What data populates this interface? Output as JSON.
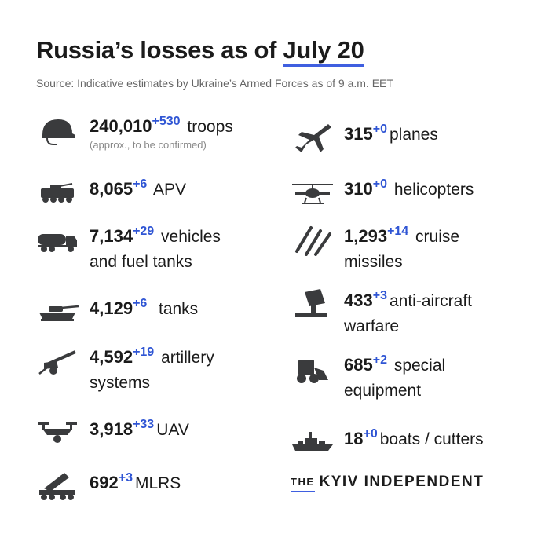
{
  "header": {
    "title_prefix": "Russia’s losses as of",
    "title_date": "July 20",
    "source": "Source: Indicative estimates by Ukraine’s Armed Forces as of 9 a.m. EET"
  },
  "left": [
    {
      "icon": "helmet-icon",
      "value": "240,010",
      "delta": "+530",
      "label": "troops",
      "note": "(approx., to be confirmed)"
    },
    {
      "icon": "apv-icon",
      "value": "8,065",
      "delta": "+6",
      "label": "APV"
    },
    {
      "icon": "fuel-truck-icon",
      "value": "7,134",
      "delta": "+29",
      "label": "vehicles",
      "label2": "and fuel tanks"
    },
    {
      "icon": "tank-icon",
      "value": "4,129",
      "delta": "+6",
      "label": "tanks"
    },
    {
      "icon": "artillery-icon",
      "value": "4,592",
      "delta": "+19",
      "label": "artillery",
      "label2": "systems"
    },
    {
      "icon": "drone-icon",
      "value": "3,918",
      "delta": "+33",
      "label": "UAV"
    },
    {
      "icon": "mlrs-icon",
      "value": "692",
      "delta": "+3",
      "label": "MLRS"
    }
  ],
  "right": [
    {
      "icon": "plane-icon",
      "value": "315",
      "delta": "+0",
      "label": "planes"
    },
    {
      "icon": "helicopter-icon",
      "value": "310",
      "delta": "+0",
      "label": "helicopters"
    },
    {
      "icon": "missiles-icon",
      "value": "1,293",
      "delta": "+14",
      "label": "cruise",
      "label2": "missiles"
    },
    {
      "icon": "anti-aircraft-icon",
      "value": "433",
      "delta": "+3",
      "label": "anti-aircraft",
      "label2": "warfare"
    },
    {
      "icon": "loader-icon",
      "value": "685",
      "delta": "+2",
      "label": "special",
      "label2": "equipment"
    },
    {
      "icon": "boat-icon",
      "value": "18",
      "delta": "+0",
      "label": "boats / cutters"
    }
  ],
  "logo": {
    "the": "THE",
    "name": "KYIV INDEPENDENT"
  },
  "colors": {
    "accent": "#2f55d4",
    "icon": "#3a3b3d",
    "text": "#1b1b1b"
  }
}
